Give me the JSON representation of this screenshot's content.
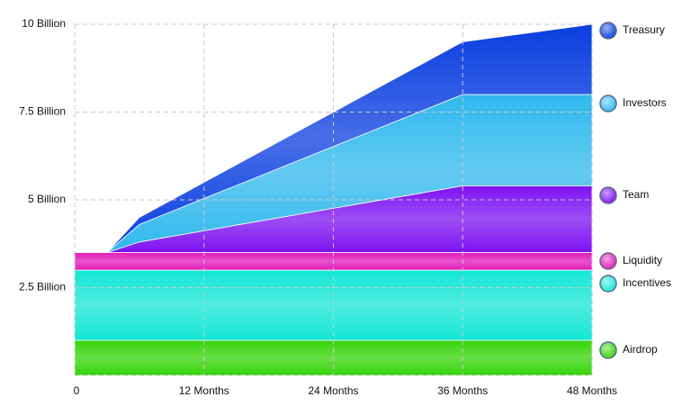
{
  "chart_data": {
    "type": "area",
    "x": [
      0,
      3,
      6,
      36,
      48
    ],
    "series": [
      {
        "name": "Airdrop",
        "color": "#35d40a",
        "values": [
          1,
          1,
          1,
          1,
          1
        ]
      },
      {
        "name": "Incentives",
        "color": "#14e7d6",
        "values": [
          2,
          2,
          2,
          2,
          2
        ]
      },
      {
        "name": "Liquidity",
        "color": "#e01ab8",
        "values": [
          0.5,
          0.5,
          0.5,
          0.5,
          0.5
        ]
      },
      {
        "name": "Team",
        "color": "#7d12f2",
        "values": [
          0,
          0,
          0.3,
          1.9,
          1.9
        ]
      },
      {
        "name": "Investors",
        "color": "#2fb8ee",
        "values": [
          0,
          0,
          0.5,
          2.6,
          2.6
        ]
      },
      {
        "name": "Treasury",
        "color": "#0a3ee0",
        "values": [
          0,
          0,
          0.2,
          1.5,
          2
        ]
      }
    ],
    "xlim": [
      0,
      48
    ],
    "xticks": [
      0,
      {
        "value": 12,
        "label": "12 Months"
      },
      {
        "value": 24,
        "label": "24 Months"
      },
      {
        "value": 36,
        "label": "36 Months"
      },
      {
        "value": 48,
        "label": "48 Months"
      }
    ],
    "ylim": [
      0,
      10
    ],
    "yticks": [
      {
        "value": 2.5,
        "label": "2.5 Billion"
      },
      {
        "value": 5,
        "label": "5 Billion"
      },
      {
        "value": 7.5,
        "label": "7.5 Billion"
      },
      {
        "value": 10,
        "label": "10 Billion"
      }
    ],
    "grid": true
  }
}
